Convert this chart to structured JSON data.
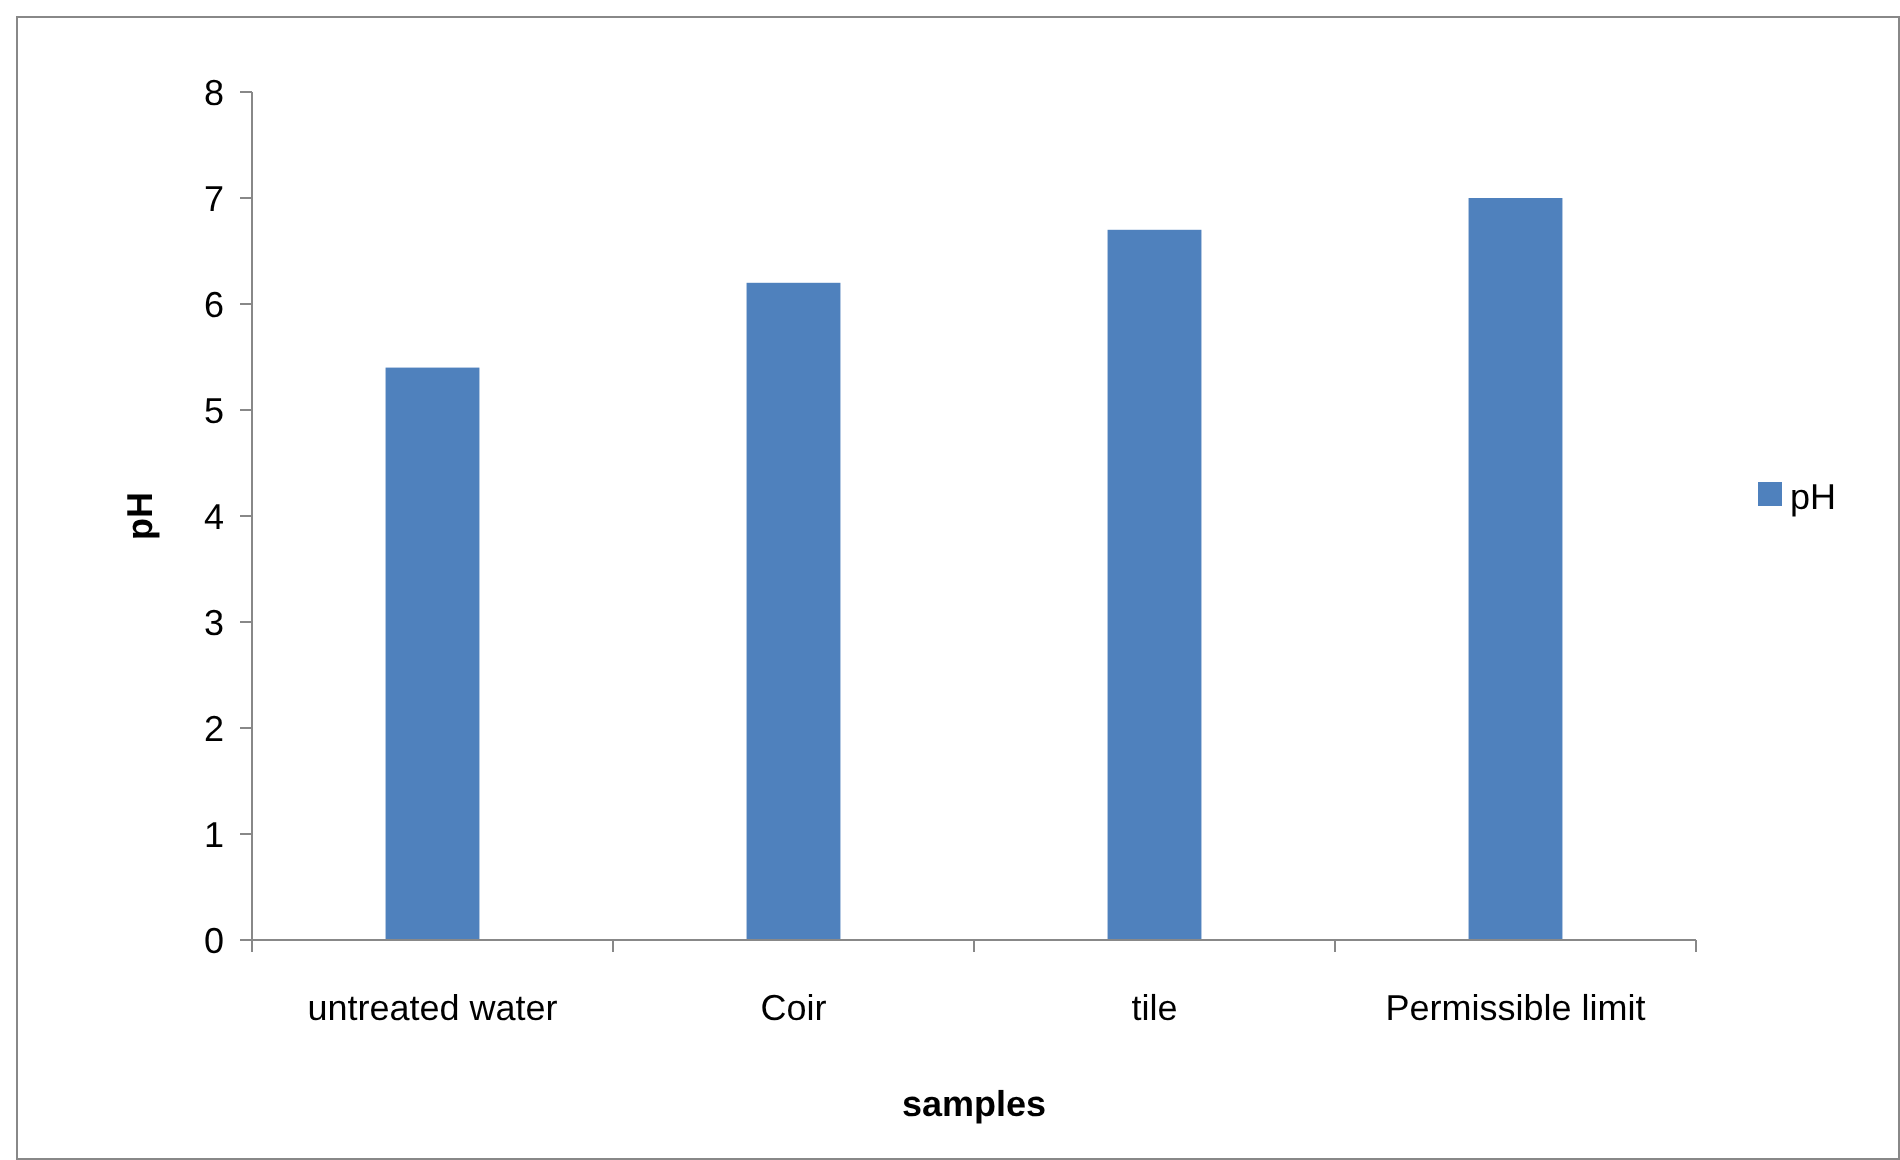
{
  "chart_data": {
    "type": "bar",
    "xlabel": "samples",
    "ylabel": "pH",
    "categories": [
      "untreated water",
      "Coir",
      "tile",
      "Permissible limit"
    ],
    "series": [
      {
        "name": "pH",
        "color": "#4f81bd",
        "values": [
          5.4,
          6.2,
          6.7,
          7.0
        ]
      }
    ],
    "ylim": [
      0,
      8
    ],
    "yticks": [
      0,
      1,
      2,
      3,
      4,
      5,
      6,
      7,
      8
    ],
    "grid": false,
    "legend": "right"
  }
}
